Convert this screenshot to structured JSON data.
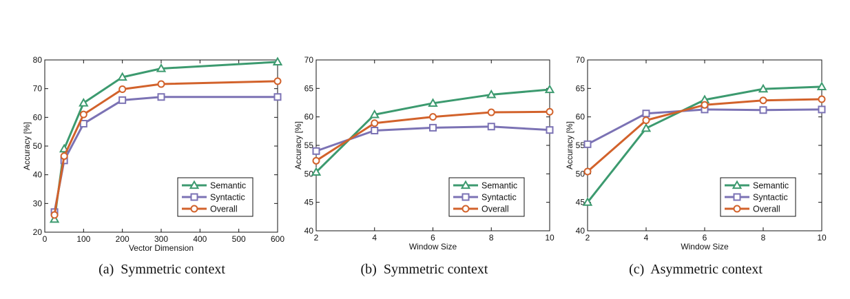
{
  "colors": {
    "Semantic": "#3c9a6f",
    "Syntactic": "#7b72b4",
    "Overall": "#d2622b"
  },
  "chart_data": [
    {
      "type": "line",
      "caption_tag": "(a)",
      "caption_text": "Symmetric context",
      "xlabel": "Vector Dimension",
      "ylabel": "Accuracy [%]",
      "xlim": [
        0,
        600
      ],
      "ylim": [
        20,
        80
      ],
      "xticks": [
        0,
        100,
        200,
        300,
        400,
        500,
        600
      ],
      "yticks": [
        20,
        30,
        40,
        50,
        60,
        70,
        80
      ],
      "grid": false,
      "legend_position": "bottom-right",
      "x": [
        25,
        50,
        100,
        200,
        300,
        600
      ],
      "series": [
        {
          "name": "Semantic",
          "marker": "triangle",
          "values": [
            24.5,
            49,
            65,
            74,
            77,
            79.3
          ]
        },
        {
          "name": "Syntactic",
          "marker": "square",
          "values": [
            27,
            45,
            57.8,
            66,
            67.1,
            67.1
          ]
        },
        {
          "name": "Overall",
          "marker": "circle",
          "values": [
            26,
            46.5,
            61,
            69.8,
            71.6,
            72.6
          ]
        }
      ]
    },
    {
      "type": "line",
      "caption_tag": "(b)",
      "caption_text": "Symmetric context",
      "xlabel": "Window Size",
      "ylabel": "Accuracy [%]",
      "xlim": [
        2,
        10
      ],
      "ylim": [
        40,
        70
      ],
      "xticks": [
        2,
        4,
        6,
        8,
        10
      ],
      "yticks": [
        40,
        45,
        50,
        55,
        60,
        65,
        70
      ],
      "grid": false,
      "legend_position": "bottom-right",
      "x": [
        2,
        4,
        6,
        8,
        10
      ],
      "series": [
        {
          "name": "Semantic",
          "marker": "triangle",
          "values": [
            50.3,
            60.4,
            62.4,
            63.9,
            64.8
          ]
        },
        {
          "name": "Syntactic",
          "marker": "square",
          "values": [
            54,
            57.6,
            58.1,
            58.3,
            57.7
          ]
        },
        {
          "name": "Overall",
          "marker": "circle",
          "values": [
            52.3,
            58.9,
            60,
            60.8,
            60.9
          ]
        }
      ]
    },
    {
      "type": "line",
      "caption_tag": "(c)",
      "caption_text": "Asymmetric context",
      "xlabel": "Window Size",
      "ylabel": "Accuracy [%]",
      "xlim": [
        2,
        10
      ],
      "ylim": [
        40,
        70
      ],
      "xticks": [
        2,
        4,
        6,
        8,
        10
      ],
      "yticks": [
        40,
        45,
        50,
        55,
        60,
        65,
        70
      ],
      "grid": false,
      "legend_position": "bottom-right",
      "x": [
        2,
        4,
        6,
        8,
        10
      ],
      "series": [
        {
          "name": "Semantic",
          "marker": "triangle",
          "values": [
            45,
            58,
            63,
            64.9,
            65.3
          ]
        },
        {
          "name": "Syntactic",
          "marker": "square",
          "values": [
            55.2,
            60.6,
            61.3,
            61.2,
            61.3
          ]
        },
        {
          "name": "Overall",
          "marker": "circle",
          "values": [
            50.4,
            59.4,
            62.1,
            62.9,
            63.1
          ]
        }
      ]
    }
  ]
}
